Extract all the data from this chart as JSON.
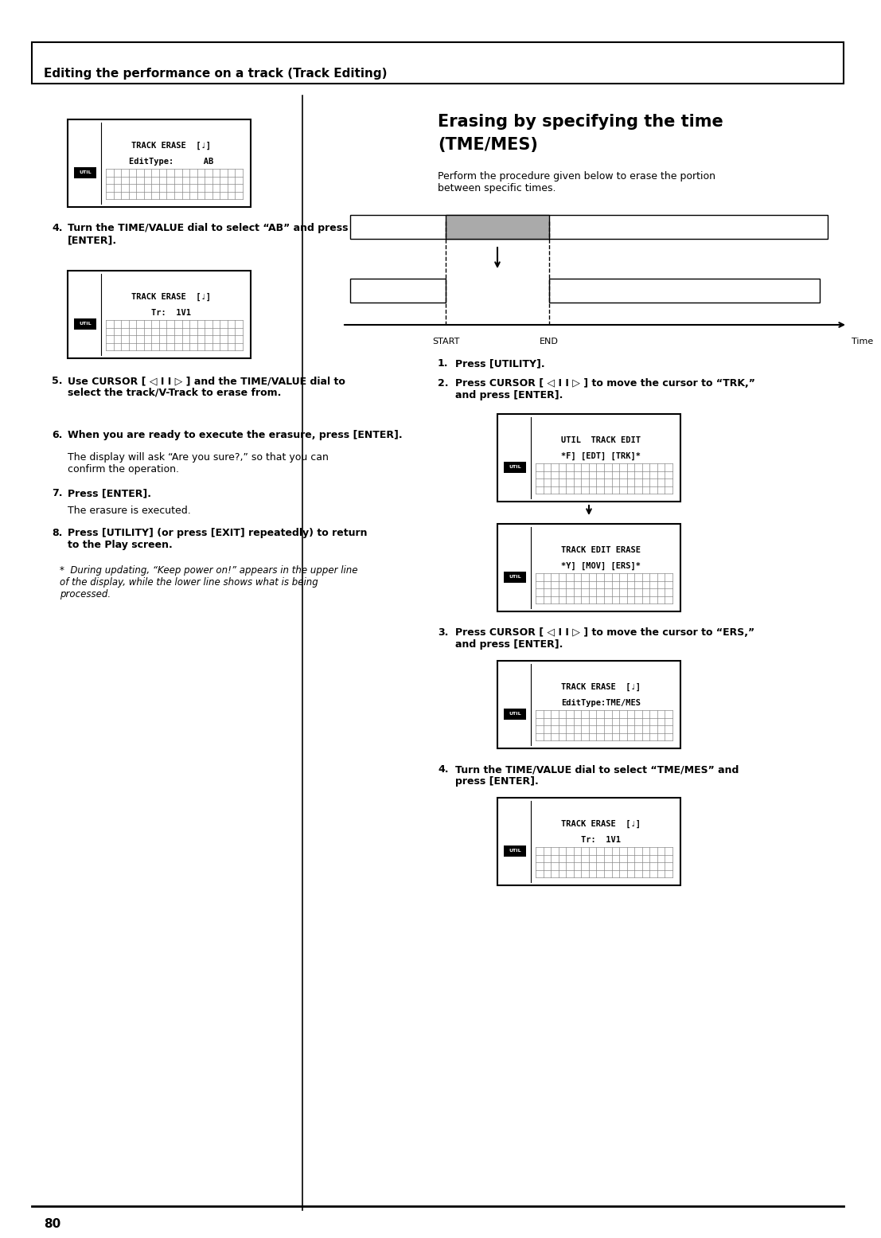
{
  "page_width": 10.8,
  "page_height": 15.28,
  "bg_color": "#ffffff",
  "header_text": "Editing the performance on a track (Track Editing)",
  "title_right": "Erasing by specifying the time\n(TME/MES)",
  "intro_text": "Perform the procedure given below to erase the portion\nbetween specific times.",
  "left_steps": [
    {
      "num": "4.",
      "bold": "Turn the TIME/VALUE dial to select “AB” and press\n[ENTER]."
    },
    {
      "num": "5.",
      "bold": "Use CURSOR [◁ I I ▷ ] and the TIME/VALUE dial to\nselect the track/V-Track to erase from."
    },
    {
      "num": "6.",
      "bold": "When you are ready to execute the erasure, press [ENTER]."
    },
    {
      "num": "",
      "bold": "",
      "normal": "The display will ask “Are you sure?,” so that you can\nconfirm the operation."
    },
    {
      "num": "7.",
      "bold": "Press [ENTER]."
    },
    {
      "num": "",
      "bold": "",
      "normal": "The erasure is executed."
    },
    {
      "num": "8.",
      "bold": "Press [UTILITY] (or press [EXIT] repeatedly) to return\nto the Play screen."
    },
    {
      "num": "",
      "bold": "",
      "normal": "* During updating, “Keep power on!” appears in the upper line\nof the display, while the lower line shows what is being\nprocessed."
    }
  ],
  "right_steps": [
    {
      "num": "1.",
      "bold": "Press [UTILITY]."
    },
    {
      "num": "2.",
      "bold": "Press CURSOR [◁ I I ▷ ] to move the cursor to “TRK,”\nand press [ENTER]."
    },
    {
      "num": "3.",
      "bold": "Press CURSOR [◁ I I ▷ ] to move the cursor to “ERS,”\nand press [ENTER]."
    },
    {
      "num": "4.",
      "bold": "Turn the TIME/VALUE dial to select “TME/MES” and\npress [ENTER]."
    }
  ],
  "footer_text": "80"
}
